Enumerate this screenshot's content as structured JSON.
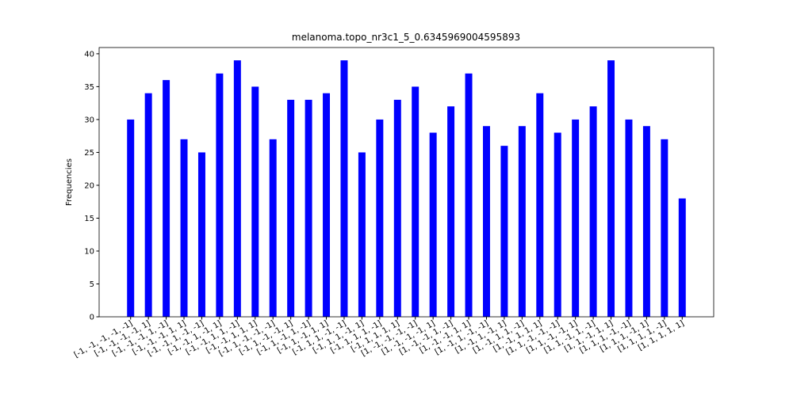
{
  "chart_data": {
    "type": "bar",
    "title": "melanoma.topo_nr3c1_5_0.6345969004595893",
    "ylabel": "Frequencies",
    "categories": [
      "[-1, -1, -1, -1, -1]",
      "[-1, -1, -1, -1, 1]",
      "[-1, -1, -1, 1, -1]",
      "[-1, -1, -1, 1, 1]",
      "[-1, -1, 1, -1, -1]",
      "[-1, -1, 1, -1, 1]",
      "[-1, -1, 1, 1, -1]",
      "[-1, -1, 1, 1, 1]",
      "[-1, 1, -1, -1, -1]",
      "[-1, 1, -1, -1, 1]",
      "[-1, 1, -1, 1, -1]",
      "[-1, 1, -1, 1, 1]",
      "[-1, 1, 1, -1, -1]",
      "[-1, 1, 1, -1, 1]",
      "[-1, 1, 1, 1, -1]",
      "[-1, 1, 1, 1, 1]",
      "[1, -1, -1, -1, -1]",
      "[1, -1, -1, -1, 1]",
      "[1, -1, -1, 1, -1]",
      "[1, -1, -1, 1, 1]",
      "[1, -1, 1, -1, -1]",
      "[1, -1, 1, -1, 1]",
      "[1, -1, 1, 1, -1]",
      "[1, -1, 1, 1, 1]",
      "[1, 1, -1, -1, -1]",
      "[1, 1, -1, -1, 1]",
      "[1, 1, -1, 1, -1]",
      "[1, 1, -1, 1, 1]",
      "[1, 1, 1, -1, -1]",
      "[1, 1, 1, -1, 1]",
      "[1, 1, 1, 1, -1]",
      "[1, 1, 1, 1, 1]"
    ],
    "values": [
      30,
      34,
      36,
      27,
      25,
      37,
      39,
      35,
      27,
      33,
      33,
      34,
      39,
      25,
      30,
      33,
      35,
      28,
      32,
      37,
      29,
      26,
      29,
      34,
      28,
      30,
      32,
      39,
      30,
      29,
      27,
      18
    ],
    "color": "#0000ff",
    "ylim": [
      0,
      40.95
    ],
    "yticks": [
      0,
      5,
      10,
      15,
      20,
      25,
      30,
      35,
      40
    ],
    "grid": false
  }
}
